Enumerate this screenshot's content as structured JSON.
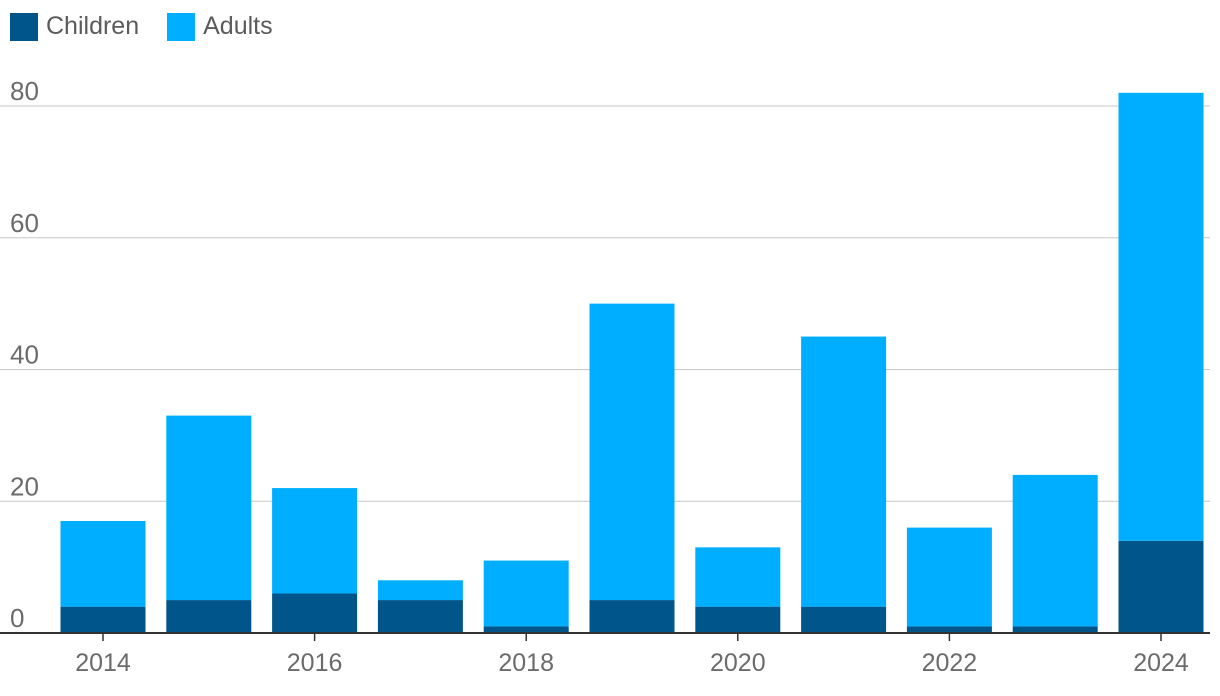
{
  "chart_data": {
    "type": "bar",
    "stacked": true,
    "title": "",
    "xlabel": "",
    "ylabel": "",
    "categories": [
      "2014",
      "2015",
      "2016",
      "2017",
      "2018",
      "2019",
      "2020",
      "2021",
      "2022",
      "2023",
      "2024"
    ],
    "x_tick_labels": [
      "2014",
      "2016",
      "2018",
      "2020",
      "2022",
      "2024"
    ],
    "y_ticks": [
      0,
      20,
      40,
      60,
      80
    ],
    "ylim": [
      0,
      85
    ],
    "grid": true,
    "legend_position": "top-left",
    "series": [
      {
        "name": "Children",
        "color": "#00568a",
        "values": [
          4,
          5,
          6,
          5,
          1,
          5,
          4,
          4,
          1,
          1,
          14
        ]
      },
      {
        "name": "Adults",
        "color": "#00aeff",
        "values": [
          13,
          28,
          16,
          3,
          10,
          45,
          9,
          41,
          15,
          23,
          68
        ]
      }
    ]
  }
}
